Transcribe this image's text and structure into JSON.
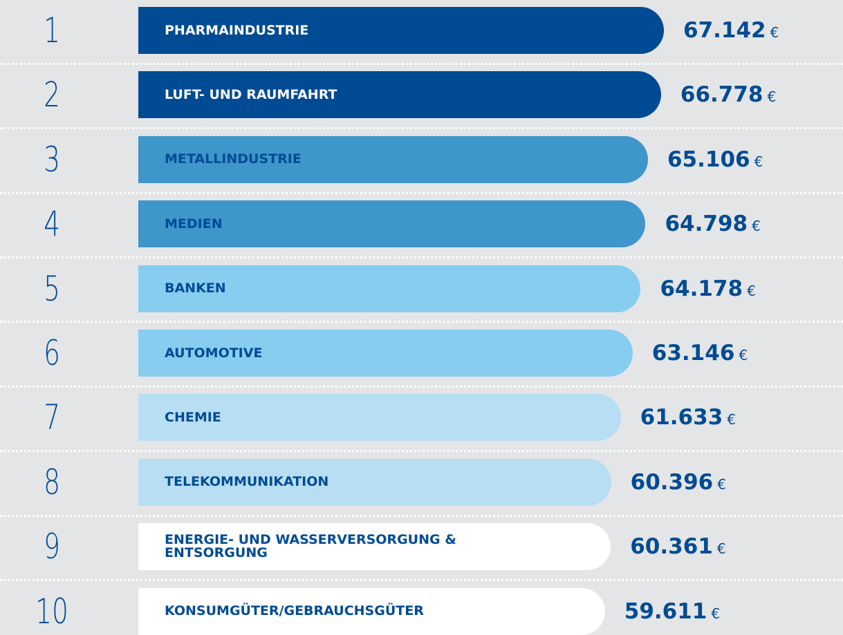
{
  "chart_data": {
    "type": "bar",
    "ranks": [
      1,
      2,
      3,
      4,
      5,
      6,
      7,
      8,
      9,
      10
    ],
    "categories": [
      "PHARMAINDUSTRIE",
      "LUFT- UND RAUMFAHRT",
      "METALLINDUSTRIE",
      "MEDIEN",
      "BANKEN",
      "AUTOMOTIVE",
      "CHEMIE",
      "TELEKOMMUNIKATION",
      "ENERGIE- UND WASSERVERSORGUNG & ENTSORGUNG",
      "KONSUMGÜTER/GEBRAUCHSGÜTER"
    ],
    "values": [
      67142,
      66778,
      65106,
      64798,
      64178,
      63146,
      61633,
      60396,
      60361,
      59611
    ],
    "value_labels": [
      "67.142",
      "66.778",
      "65.106",
      "64.798",
      "64.178",
      "63.146",
      "61.633",
      "60.396",
      "60.361",
      "59.611"
    ],
    "unit": "€",
    "colors": [
      "#004b93",
      "#004b93",
      "#3f96cb",
      "#3f96cb",
      "#86cdf0",
      "#86cdf0",
      "#b7def3",
      "#b7def3",
      "#ffffff",
      "#ffffff"
    ]
  }
}
